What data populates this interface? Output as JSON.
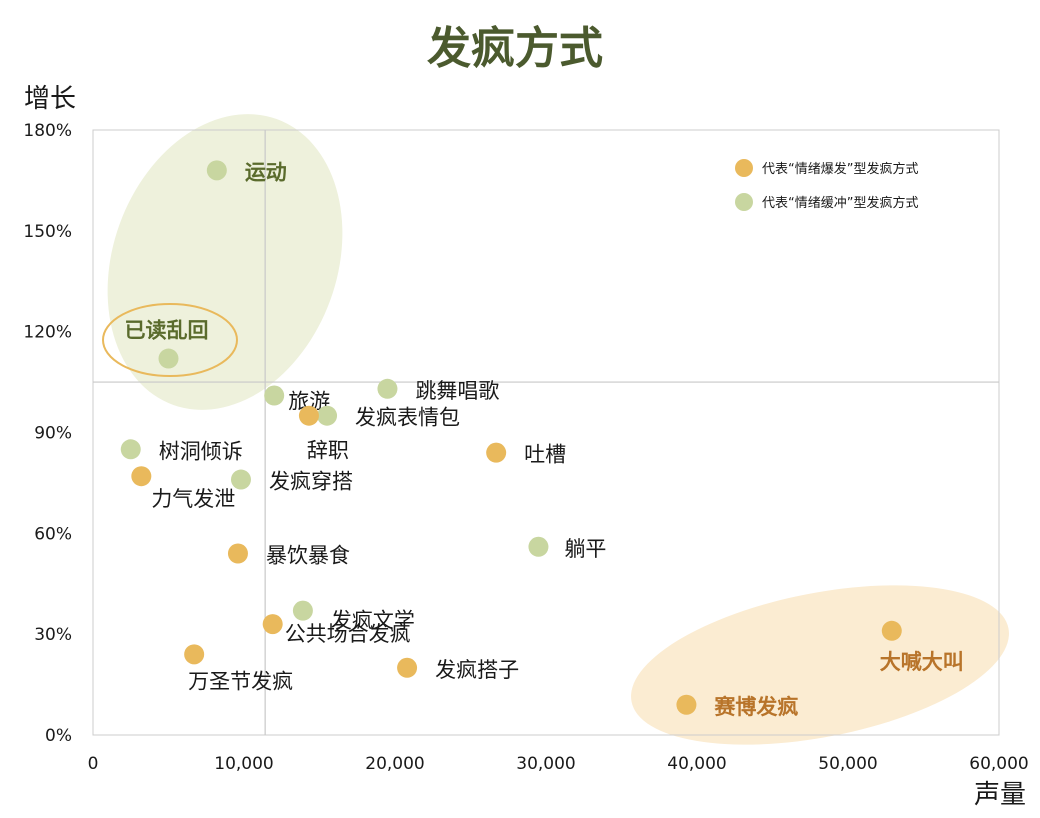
{
  "chart_data": {
    "type": "scatter",
    "title": "发疯方式",
    "xlabel": "声量",
    "ylabel": "增长",
    "xlim": [
      0,
      60000
    ],
    "ylim": [
      0,
      180
    ],
    "x_ticks": [
      "0",
      "10,000",
      "20,000",
      "30,000",
      "40,000",
      "50,000",
      "60,000"
    ],
    "y_ticks": [
      "0%",
      "30%",
      "60%",
      "90%",
      "120%",
      "150%",
      "180%"
    ],
    "reference_lines": {
      "x": 11400,
      "y": 105
    },
    "colors": {
      "explode": "#e9b95c",
      "buffer": "#c8d6a0"
    },
    "legend": [
      {
        "group": "explode",
        "label": "代表“情绪爆发”型发疯方式"
      },
      {
        "group": "buffer",
        "label": "代表“情绪缓冲”型发疯方式"
      }
    ],
    "points": [
      {
        "label": "运动",
        "x": 8200,
        "y": 168,
        "group": "buffer",
        "emphasis": "green"
      },
      {
        "label": "已读乱回",
        "x": 5000,
        "y": 112,
        "group": "buffer",
        "emphasis": "green"
      },
      {
        "label": "旅游",
        "x": 12000,
        "y": 101,
        "group": "buffer"
      },
      {
        "label": "跳舞唱歌",
        "x": 19500,
        "y": 103,
        "group": "buffer"
      },
      {
        "label": "发疯表情包",
        "x": 15500,
        "y": 95,
        "group": "buffer"
      },
      {
        "label": "辞职",
        "x": 14300,
        "y": 95,
        "group": "explode"
      },
      {
        "label": "树洞倾诉",
        "x": 2500,
        "y": 85,
        "group": "buffer"
      },
      {
        "label": "吐槽",
        "x": 26700,
        "y": 84,
        "group": "explode"
      },
      {
        "label": "力气发泄",
        "x": 3200,
        "y": 77,
        "group": "explode"
      },
      {
        "label": "发疯穿搭",
        "x": 9800,
        "y": 76,
        "group": "buffer"
      },
      {
        "label": "躺平",
        "x": 29500,
        "y": 56,
        "group": "buffer"
      },
      {
        "label": "暴饮暴食",
        "x": 9600,
        "y": 54,
        "group": "explode"
      },
      {
        "label": "发疯文学",
        "x": 13900,
        "y": 37,
        "group": "buffer"
      },
      {
        "label": "公共场合发疯",
        "x": 11900,
        "y": 33,
        "group": "explode"
      },
      {
        "label": "万圣节发疯",
        "x": 6700,
        "y": 24,
        "group": "explode"
      },
      {
        "label": "发疯搭子",
        "x": 20800,
        "y": 20,
        "group": "explode"
      },
      {
        "label": "大喊大叫",
        "x": 52900,
        "y": 31,
        "group": "explode",
        "emphasis": "orange"
      },
      {
        "label": "赛博发疯",
        "x": 39300,
        "y": 9,
        "group": "explode",
        "emphasis": "orange"
      }
    ],
    "highlights": [
      {
        "shape": "ellipse",
        "color": "#eef1dc",
        "around": [
          "运动",
          "已读乱回"
        ]
      },
      {
        "shape": "ellipse-outline",
        "color": "#e9b95c",
        "around": [
          "已读乱回"
        ]
      },
      {
        "shape": "ellipse",
        "color": "#fbecd2",
        "around": [
          "大喊大叫",
          "赛博发疯"
        ]
      }
    ]
  }
}
